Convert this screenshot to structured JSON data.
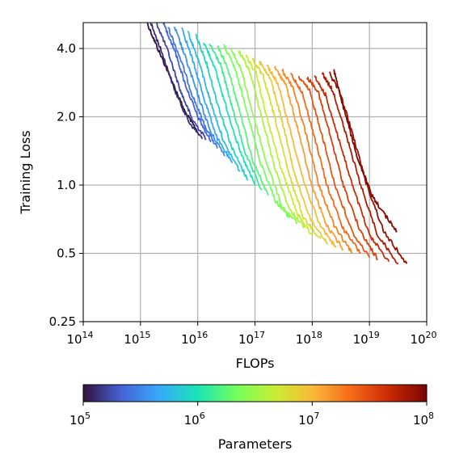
{
  "chart_data": {
    "type": "line",
    "xlabel": "FLOPs",
    "ylabel": "Training Loss",
    "x_scale": "log",
    "y_scale": "log",
    "xlim": [
      100000000000000.0,
      1e+20
    ],
    "ylim": [
      0.25,
      5.2
    ],
    "x_ticks": [
      {
        "value": 100000000000000.0,
        "base": "10",
        "exp": "14"
      },
      {
        "value": 1000000000000000.0,
        "base": "10",
        "exp": "15"
      },
      {
        "value": 1e+16,
        "base": "10",
        "exp": "16"
      },
      {
        "value": 1e+17,
        "base": "10",
        "exp": "17"
      },
      {
        "value": 1e+18,
        "base": "10",
        "exp": "18"
      },
      {
        "value": 1e+19,
        "base": "10",
        "exp": "19"
      },
      {
        "value": 1e+20,
        "base": "10",
        "exp": "20"
      }
    ],
    "y_ticks": [
      {
        "value": 0.25,
        "label": "0.25"
      },
      {
        "value": 0.5,
        "label": "0.5"
      },
      {
        "value": 1.0,
        "label": "1.0"
      },
      {
        "value": 2.0,
        "label": "2.0"
      },
      {
        "value": 4.0,
        "label": "4.0"
      }
    ],
    "grid": true,
    "colormap": "turbo",
    "colorbar": {
      "label": "Parameters",
      "scale": "log",
      "range": [
        100000.0,
        100000000.0
      ],
      "ticks": [
        {
          "value": 100000.0,
          "base": "10",
          "exp": "5"
        },
        {
          "value": 1000000.0,
          "base": "10",
          "exp": "6"
        },
        {
          "value": 10000000.0,
          "base": "10",
          "exp": "7"
        },
        {
          "value": 100000000.0,
          "base": "10",
          "exp": "8"
        }
      ],
      "colors": [
        "#30123b",
        "#4662d7",
        "#36aaf9",
        "#1ae4b6",
        "#72fe5e",
        "#c7ef34",
        "#faba39",
        "#f66b19",
        "#cb2a04",
        "#7a0403"
      ]
    },
    "series": [
      {
        "params": 100000.0,
        "x": [
          1300000000000000.0,
          2000000000000000.0,
          3500000000000000.0,
          6000000000000000.0,
          1e+16
        ],
        "y": [
          5.2,
          4.0,
          2.9,
          2.1,
          1.72
        ]
      },
      {
        "params": 130000.0,
        "x": [
          1500000000000000.0,
          2500000000000000.0,
          4000000000000000.0,
          7000000000000000.0,
          1.2e+16
        ],
        "y": [
          5.2,
          3.7,
          2.6,
          1.9,
          1.6
        ]
      },
      {
        "params": 170000.0,
        "x": [
          1900000000000000.0,
          3000000000000000.0,
          5000000000000000.0,
          8000000000000000.0,
          1.4e+16
        ],
        "y": [
          5.2,
          3.9,
          2.6,
          1.95,
          1.6
        ]
      },
      {
        "params": 220000.0,
        "x": [
          2500000000000000.0,
          4000000000000000.0,
          6000000000000000.0,
          1e+16,
          1.7e+16
        ],
        "y": [
          5.2,
          3.9,
          2.8,
          2.0,
          1.55
        ]
      },
      {
        "params": 280000.0,
        "x": [
          3000000000000000.0,
          5000000000000000.0,
          8000000000000000.0,
          1.3e+16,
          2.2e+16
        ],
        "y": [
          5.0,
          3.6,
          2.5,
          1.85,
          1.45
        ]
      },
      {
        "params": 360000.0,
        "x": [
          3900000000000000.0,
          6000000000000000.0,
          1e+16,
          1.7e+16,
          3e+16
        ],
        "y": [
          5.0,
          3.7,
          2.5,
          1.7,
          1.35
        ]
      },
      {
        "params": 460000.0,
        "x": [
          5200000000000000.0,
          8000000000000000.0,
          1.3e+16,
          2.2e+16,
          4e+16
        ],
        "y": [
          5.0,
          3.6,
          2.4,
          1.6,
          1.25
        ]
      },
      {
        "params": 600000.0,
        "x": [
          6800000000000000.0,
          1.05e+16,
          1.7e+16,
          3e+16,
          5.5e+16
        ],
        "y": [
          4.7,
          3.5,
          2.3,
          1.5,
          1.15
        ]
      },
      {
        "params": 770000.0,
        "x": [
          9200000000000000.0,
          1.4e+16,
          2.2e+16,
          4e+16,
          7.5e+16
        ],
        "y": [
          4.6,
          3.5,
          2.3,
          1.45,
          1.05
        ]
      },
      {
        "params": 1000000.0,
        "x": [
          1.25e+16,
          1.9e+16,
          3e+16,
          5.5e+16,
          1e+17
        ],
        "y": [
          4.3,
          3.4,
          2.3,
          1.4,
          1.0
        ]
      },
      {
        "params": 1300000.0,
        "x": [
          1.6e+16,
          2.5e+16,
          4e+16,
          7e+16,
          1.3e+17
        ],
        "y": [
          4.2,
          3.4,
          2.2,
          1.35,
          0.95
        ]
      },
      {
        "params": 1700000.0,
        "x": [
          2.2e+16,
          3.3e+16,
          5.2e+16,
          9e+16,
          1.7e+17
        ],
        "y": [
          4.1,
          3.3,
          2.2,
          1.3,
          0.9
        ]
      },
      {
        "params": 2200000.0,
        "x": [
          2.9e+16,
          4.4e+16,
          7e+16,
          1.2e+17,
          2.3e+17,
          4e+17
        ],
        "y": [
          4.1,
          3.3,
          2.2,
          1.3,
          0.85,
          0.72
        ]
      },
      {
        "params": 2800000.0,
        "x": [
          3.8e+16,
          5.8e+16,
          9e+16,
          1.6e+17,
          3e+17,
          5.5e+17
        ],
        "y": [
          4.0,
          3.2,
          2.1,
          1.25,
          0.8,
          0.68
        ]
      },
      {
        "params": 3600000.0,
        "x": [
          5.2e+16,
          8e+16,
          1.25e+17,
          2.2e+17,
          4e+17,
          7.5e+17
        ],
        "y": [
          3.9,
          3.2,
          2.1,
          1.2,
          0.78,
          0.65
        ]
      },
      {
        "params": 4600000.0,
        "x": [
          7e+16,
          1.05e+17,
          1.6e+17,
          2.8e+17,
          5.5e+17,
          1e+18
        ],
        "y": [
          3.7,
          3.1,
          2.0,
          1.2,
          0.75,
          0.6
        ]
      },
      {
        "params": 6000000.0,
        "x": [
          9e+16,
          1.4e+17,
          2.2e+17,
          3.8e+17,
          7e+17,
          1.4e+18
        ],
        "y": [
          3.6,
          3.0,
          2.0,
          1.15,
          0.72,
          0.58
        ]
      },
      {
        "params": 7700000.0,
        "x": [
          1.2e+17,
          1.9e+17,
          3e+17,
          5e+17,
          9.5e+17,
          1.9e+18
        ],
        "y": [
          3.5,
          2.9,
          1.9,
          1.1,
          0.7,
          0.55
        ]
      },
      {
        "params": 10000000.0,
        "x": [
          1.6e+17,
          2.5e+17,
          4e+17,
          7e+17,
          1.3e+18,
          2.6e+18
        ],
        "y": [
          3.4,
          2.8,
          1.8,
          1.05,
          0.68,
          0.53
        ]
      },
      {
        "params": 13000000.0,
        "x": [
          2.2e+17,
          3.4e+17,
          5.5e+17,
          9.5e+17,
          1.8e+18,
          3.5e+18
        ],
        "y": [
          3.3,
          2.8,
          1.8,
          1.02,
          0.66,
          0.52
        ]
      },
      {
        "params": 17000000.0,
        "x": [
          3e+17,
          4.6e+17,
          7.5e+17,
          1.3e+18,
          2.5e+18,
          5e+18
        ],
        "y": [
          3.2,
          2.7,
          1.75,
          1.0,
          0.65,
          0.5
        ]
      },
      {
        "params": 22000000.0,
        "x": [
          4.2e+17,
          6.5e+17,
          1.05e+18,
          1.8e+18,
          3.5e+18,
          7e+18
        ],
        "y": [
          3.1,
          2.6,
          1.7,
          1.0,
          0.64,
          0.5
        ]
      },
      {
        "params": 28000000.0,
        "x": [
          5.8e+17,
          9e+17,
          1.45e+18,
          2.5e+18,
          5e+18,
          1e+19
        ],
        "y": [
          3.0,
          2.6,
          1.7,
          1.0,
          0.62,
          0.48
        ]
      },
      {
        "params": 36000000.0,
        "x": [
          8e+17,
          1.25e+18,
          2e+18,
          3.5e+18,
          7e+18,
          1.4e+19
        ],
        "y": [
          3.0,
          2.6,
          1.7,
          1.0,
          0.62,
          0.47
        ]
      },
      {
        "params": 46000000.0,
        "x": [
          1.1e+18,
          1.7e+18,
          2.8e+18,
          5e+18,
          1e+19,
          2.2e+19
        ],
        "y": [
          3.0,
          2.5,
          1.65,
          1.0,
          0.6,
          0.46
        ]
      },
      {
        "params": 60000000.0,
        "x": [
          1.5e+18,
          2.3e+18,
          3.8e+18,
          7e+18,
          1.4e+19,
          3.2e+19
        ],
        "y": [
          3.1,
          2.6,
          1.7,
          1.0,
          0.6,
          0.45
        ]
      },
      {
        "params": 77000000.0,
        "x": [
          2e+18,
          3e+18,
          5e+18,
          9e+18,
          1.8e+19,
          4.5e+19
        ],
        "y": [
          3.1,
          2.6,
          1.7,
          1.0,
          0.62,
          0.45
        ]
      },
      {
        "params": 88000000.0,
        "x": [
          2.4e+18,
          3.5e+18,
          6e+18,
          1.1e+19,
          2e+19,
          3e+19
        ],
        "y": [
          3.2,
          2.2,
          1.35,
          0.9,
          0.72,
          0.63
        ]
      }
    ]
  }
}
